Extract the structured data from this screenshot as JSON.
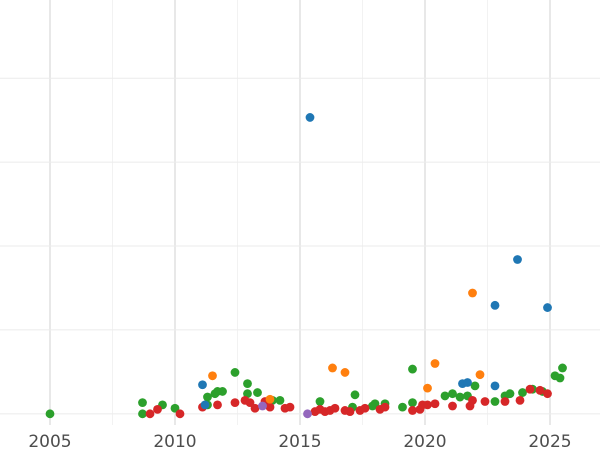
{
  "chart_data": {
    "type": "scatter",
    "title": "",
    "xlabel": "",
    "ylabel": "",
    "xlim": [
      2003,
      2027
    ],
    "ylim": [
      -1,
      37
    ],
    "x_ticks": [
      2005,
      2010,
      2015,
      2020,
      2025
    ],
    "x_tick_labels": [
      "2005",
      "2010",
      "2015",
      "2020",
      "2025"
    ],
    "y_gridlines": [
      0,
      7.5,
      15,
      22.5,
      30
    ],
    "grid": true,
    "legend": "none",
    "series": [
      {
        "color": "#2ca02c",
        "points": [
          [
            2005.0,
            0.0
          ],
          [
            2008.7,
            1.0
          ],
          [
            2008.7,
            0.0
          ],
          [
            2009.5,
            0.8
          ],
          [
            2010.0,
            0.5
          ],
          [
            2011.3,
            1.5
          ],
          [
            2011.6,
            1.8
          ],
          [
            2011.7,
            2.0
          ],
          [
            2011.9,
            2.0
          ],
          [
            2011.3,
            0.8
          ],
          [
            2012.4,
            3.7
          ],
          [
            2012.9,
            2.7
          ],
          [
            2012.9,
            1.8
          ],
          [
            2013.3,
            1.9
          ],
          [
            2013.9,
            1.2
          ],
          [
            2014.2,
            1.2
          ],
          [
            2015.8,
            1.1
          ],
          [
            2017.2,
            1.7
          ],
          [
            2017.1,
            0.6
          ],
          [
            2017.9,
            0.7
          ],
          [
            2018.0,
            0.9
          ],
          [
            2018.4,
            0.9
          ],
          [
            2019.1,
            0.6
          ],
          [
            2019.5,
            1.0
          ],
          [
            2019.5,
            4.0
          ],
          [
            2020.8,
            1.6
          ],
          [
            2021.1,
            1.8
          ],
          [
            2021.4,
            1.5
          ],
          [
            2021.7,
            1.6
          ],
          [
            2022.0,
            2.5
          ],
          [
            2022.8,
            1.1
          ],
          [
            2023.2,
            1.6
          ],
          [
            2023.4,
            1.8
          ],
          [
            2023.9,
            1.9
          ],
          [
            2024.3,
            2.2
          ],
          [
            2024.7,
            2.0
          ],
          [
            2025.2,
            3.4
          ],
          [
            2025.4,
            3.2
          ],
          [
            2025.5,
            4.1
          ]
        ]
      },
      {
        "color": "#d62728",
        "points": [
          [
            2009.0,
            0.0
          ],
          [
            2009.3,
            0.4
          ],
          [
            2010.2,
            0.0
          ],
          [
            2011.1,
            0.6
          ],
          [
            2011.7,
            0.8
          ],
          [
            2012.4,
            1.0
          ],
          [
            2012.8,
            1.2
          ],
          [
            2013.0,
            1.0
          ],
          [
            2013.2,
            0.5
          ],
          [
            2013.6,
            1.1
          ],
          [
            2013.8,
            0.6
          ],
          [
            2014.4,
            0.5
          ],
          [
            2014.6,
            0.6
          ],
          [
            2015.6,
            0.2
          ],
          [
            2015.8,
            0.4
          ],
          [
            2016.0,
            0.2
          ],
          [
            2016.2,
            0.3
          ],
          [
            2016.4,
            0.5
          ],
          [
            2016.8,
            0.3
          ],
          [
            2017.0,
            0.2
          ],
          [
            2017.4,
            0.3
          ],
          [
            2017.6,
            0.5
          ],
          [
            2018.2,
            0.4
          ],
          [
            2018.4,
            0.6
          ],
          [
            2019.5,
            0.3
          ],
          [
            2019.8,
            0.4
          ],
          [
            2019.9,
            0.8
          ],
          [
            2020.1,
            0.8
          ],
          [
            2020.4,
            0.9
          ],
          [
            2021.1,
            0.7
          ],
          [
            2021.8,
            0.7
          ],
          [
            2021.9,
            1.2
          ],
          [
            2022.4,
            1.1
          ],
          [
            2023.2,
            1.1
          ],
          [
            2023.8,
            1.2
          ],
          [
            2024.2,
            2.2
          ],
          [
            2024.6,
            2.1
          ],
          [
            2024.9,
            1.8
          ]
        ]
      },
      {
        "color": "#1f77b4",
        "points": [
          [
            2011.1,
            2.6
          ],
          [
            2011.2,
            0.8
          ],
          [
            2015.4,
            26.5
          ],
          [
            2021.5,
            2.7
          ],
          [
            2021.7,
            2.8
          ],
          [
            2022.8,
            9.7
          ],
          [
            2022.8,
            2.5
          ],
          [
            2023.7,
            13.8
          ],
          [
            2024.9,
            9.5
          ]
        ]
      },
      {
        "color": "#ff7f0e",
        "points": [
          [
            2011.5,
            3.4
          ],
          [
            2013.8,
            1.3
          ],
          [
            2016.3,
            4.1
          ],
          [
            2016.8,
            3.7
          ],
          [
            2020.1,
            2.3
          ],
          [
            2020.4,
            4.5
          ],
          [
            2021.9,
            10.8
          ],
          [
            2022.2,
            3.5
          ]
        ]
      },
      {
        "color": "#9467bd",
        "points": [
          [
            2013.5,
            0.7
          ],
          [
            2015.3,
            0.0
          ]
        ]
      }
    ]
  }
}
